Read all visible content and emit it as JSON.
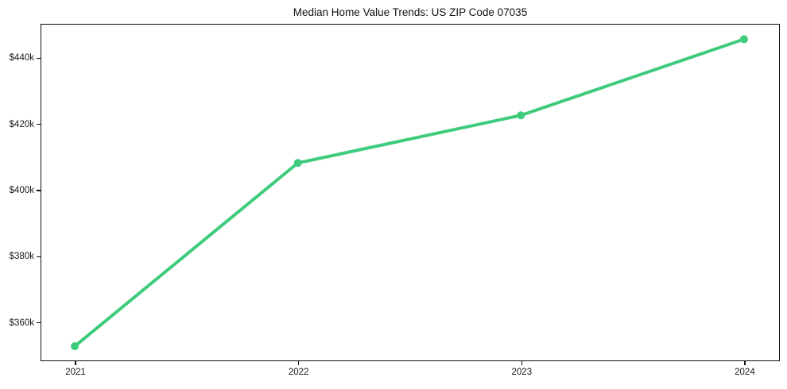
{
  "chart_data": {
    "type": "line",
    "title": "Median Home Value Trends: US ZIP Code 07035",
    "x": [
      2021,
      2022,
      2023,
      2024
    ],
    "series": [
      {
        "name": "Median Home Value",
        "values": [
          352700,
          408100,
          422500,
          445500
        ]
      }
    ],
    "x_tick_labels": [
      "2021",
      "2022",
      "2023",
      "2024"
    ],
    "y_tick_labels": [
      "$360k",
      "$380k",
      "$400k",
      "$420k",
      "$440k"
    ],
    "y_tick_values": [
      360000,
      380000,
      400000,
      420000,
      440000
    ],
    "xlim": [
      2020.843,
      2024.157
    ],
    "ylim": [
      348400,
      450400
    ],
    "xlabel": "",
    "ylabel": "",
    "grid": false,
    "legend_position": "none",
    "line_color": "#3ecb7c",
    "marker": "circle",
    "marker_color": "#3ecb7c",
    "background_color": "#ffffff",
    "axis_color": "#0d0d0d",
    "text_color": "#1a1a1a"
  }
}
